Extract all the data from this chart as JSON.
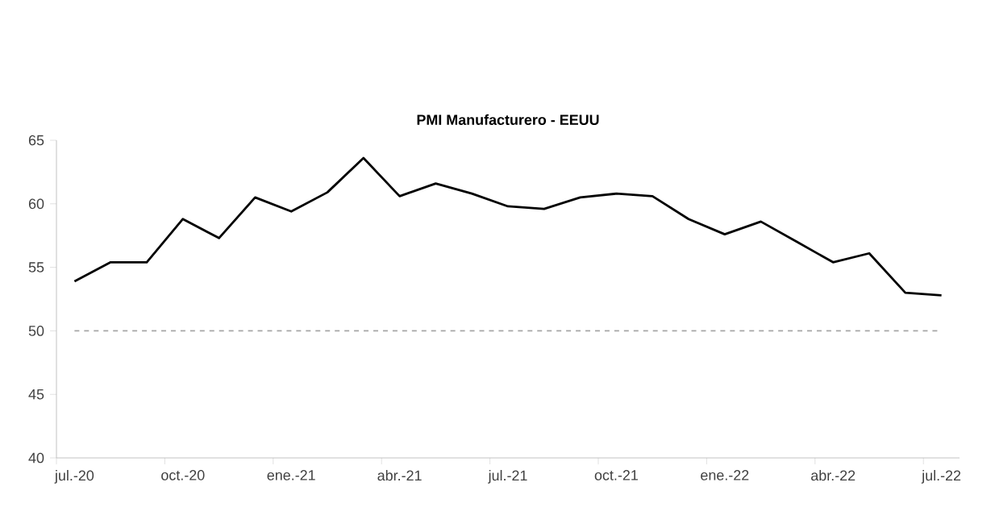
{
  "chart_data": {
    "type": "line",
    "title": "PMI Manufacturero - EEUU",
    "categories": [
      "jul.-20",
      null,
      null,
      "oct.-20",
      null,
      null,
      "ene.-21",
      null,
      null,
      "abr.-21",
      null,
      null,
      "jul.-21",
      null,
      null,
      "oct.-21",
      null,
      null,
      "ene.-22",
      null,
      null,
      "abr.-22",
      null,
      null,
      "jul.-22"
    ],
    "series": [
      {
        "color": "#000000",
        "values": [
          53.9,
          55.4,
          55.4,
          58.8,
          57.3,
          60.5,
          59.4,
          60.9,
          63.6,
          60.6,
          61.6,
          60.8,
          59.8,
          59.6,
          60.5,
          60.8,
          60.6,
          58.8,
          57.6,
          58.6,
          57.0,
          55.4,
          56.1,
          53.0,
          52.8
        ]
      }
    ],
    "ylim": [
      40,
      65
    ],
    "yticks": [
      40,
      45,
      50,
      55,
      60,
      65
    ],
    "ref_lines": [
      {
        "axis": "y",
        "value": 50,
        "color": "#a6a6a6",
        "line_style": "dashed"
      }
    ],
    "marker": "none",
    "line_style": "solid"
  }
}
